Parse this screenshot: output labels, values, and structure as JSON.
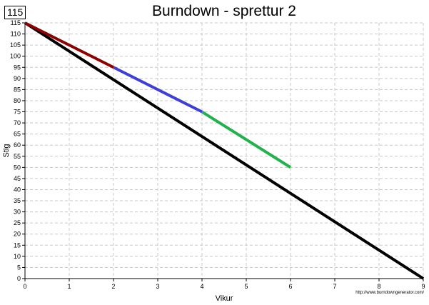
{
  "badge": "115",
  "chart_data": {
    "type": "line",
    "title": "Burndown - sprettur 2",
    "xlabel": "Vikur",
    "ylabel": "Stig",
    "xlim": [
      0,
      9
    ],
    "ylim": [
      0,
      115
    ],
    "x_ticks": [
      0,
      1,
      2,
      3,
      4,
      5,
      6,
      7,
      8,
      9
    ],
    "y_ticks": [
      0,
      5,
      10,
      15,
      20,
      25,
      30,
      35,
      40,
      45,
      50,
      55,
      60,
      65,
      70,
      75,
      80,
      85,
      90,
      95,
      100,
      105,
      110,
      115
    ],
    "grid": true,
    "series": [
      {
        "color": "#000000",
        "points": [
          [
            0,
            115
          ],
          [
            9,
            0
          ]
        ]
      },
      {
        "color": "#8b0000",
        "points": [
          [
            0,
            115
          ],
          [
            2,
            95
          ]
        ]
      },
      {
        "color": "#3f3fd6",
        "points": [
          [
            2,
            95
          ],
          [
            4,
            75
          ]
        ]
      },
      {
        "color": "#22b14c",
        "points": [
          [
            4,
            75
          ],
          [
            6,
            50
          ]
        ]
      }
    ]
  },
  "credit": "http://www.burndowngenerator.com/"
}
